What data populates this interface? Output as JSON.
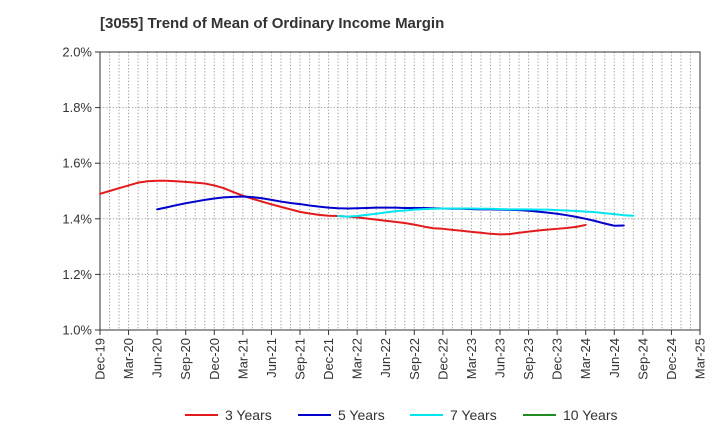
{
  "chart_data": {
    "type": "line",
    "title": "[3055]  Trend of Mean of Ordinary Income Margin",
    "xlabel": "",
    "ylabel": "",
    "x_ticks": [
      "Dec-19",
      "Mar-20",
      "Jun-20",
      "Sep-20",
      "Dec-20",
      "Mar-21",
      "Jun-21",
      "Sep-21",
      "Dec-21",
      "Mar-22",
      "Jun-22",
      "Sep-22",
      "Dec-22",
      "Mar-23",
      "Jun-23",
      "Sep-23",
      "Dec-23",
      "Mar-24",
      "Jun-24",
      "Sep-24",
      "Dec-24",
      "Mar-25"
    ],
    "y_ticks": [
      "1.0%",
      "1.2%",
      "1.4%",
      "1.6%",
      "1.8%",
      "2.0%"
    ],
    "ylim": [
      1.0,
      2.0
    ],
    "grid": true,
    "legend_position": "bottom",
    "series": [
      {
        "name": "3 Years",
        "color": "#e31a1c",
        "start_index": 0,
        "values": [
          1.49,
          1.5,
          1.51,
          1.52,
          1.53,
          1.535,
          1.537,
          1.537,
          1.535,
          1.533,
          1.53,
          1.527,
          1.52,
          1.51,
          1.496,
          1.483,
          1.472,
          1.462,
          1.452,
          1.443,
          1.434,
          1.425,
          1.419,
          1.414,
          1.411,
          1.41,
          1.408,
          1.405,
          1.401,
          1.397,
          1.393,
          1.389,
          1.385,
          1.379,
          1.372,
          1.366,
          1.364,
          1.36,
          1.357,
          1.353,
          1.35,
          1.346,
          1.344,
          1.345,
          1.35,
          1.354,
          1.358,
          1.361,
          1.364,
          1.367,
          1.371,
          1.378
        ]
      },
      {
        "name": "5 Years",
        "color": "#0000cc",
        "start_index": 6,
        "values": [
          1.434,
          1.441,
          1.449,
          1.456,
          1.462,
          1.468,
          1.473,
          1.477,
          1.479,
          1.48,
          1.478,
          1.474,
          1.468,
          1.462,
          1.457,
          1.453,
          1.448,
          1.444,
          1.44,
          1.438,
          1.437,
          1.438,
          1.439,
          1.44,
          1.44,
          1.44,
          1.439,
          1.439,
          1.439,
          1.438,
          1.437,
          1.436,
          1.436,
          1.435,
          1.434,
          1.434,
          1.433,
          1.432,
          1.431,
          1.429,
          1.426,
          1.422,
          1.418,
          1.413,
          1.407,
          1.4,
          1.392,
          1.383,
          1.375,
          1.376
        ]
      },
      {
        "name": "7 Years",
        "color": "#00e5ee",
        "start_index": 25,
        "values": [
          1.41,
          1.408,
          1.41,
          1.414,
          1.418,
          1.423,
          1.427,
          1.43,
          1.433,
          1.435,
          1.436,
          1.437,
          1.437,
          1.437,
          1.437,
          1.436,
          1.436,
          1.435,
          1.434,
          1.434,
          1.434,
          1.433,
          1.433,
          1.431,
          1.43,
          1.428,
          1.426,
          1.424,
          1.42,
          1.417,
          1.413,
          1.411
        ]
      },
      {
        "name": "10 Years",
        "color": "#228b22",
        "start_index": 0,
        "values": []
      }
    ]
  }
}
